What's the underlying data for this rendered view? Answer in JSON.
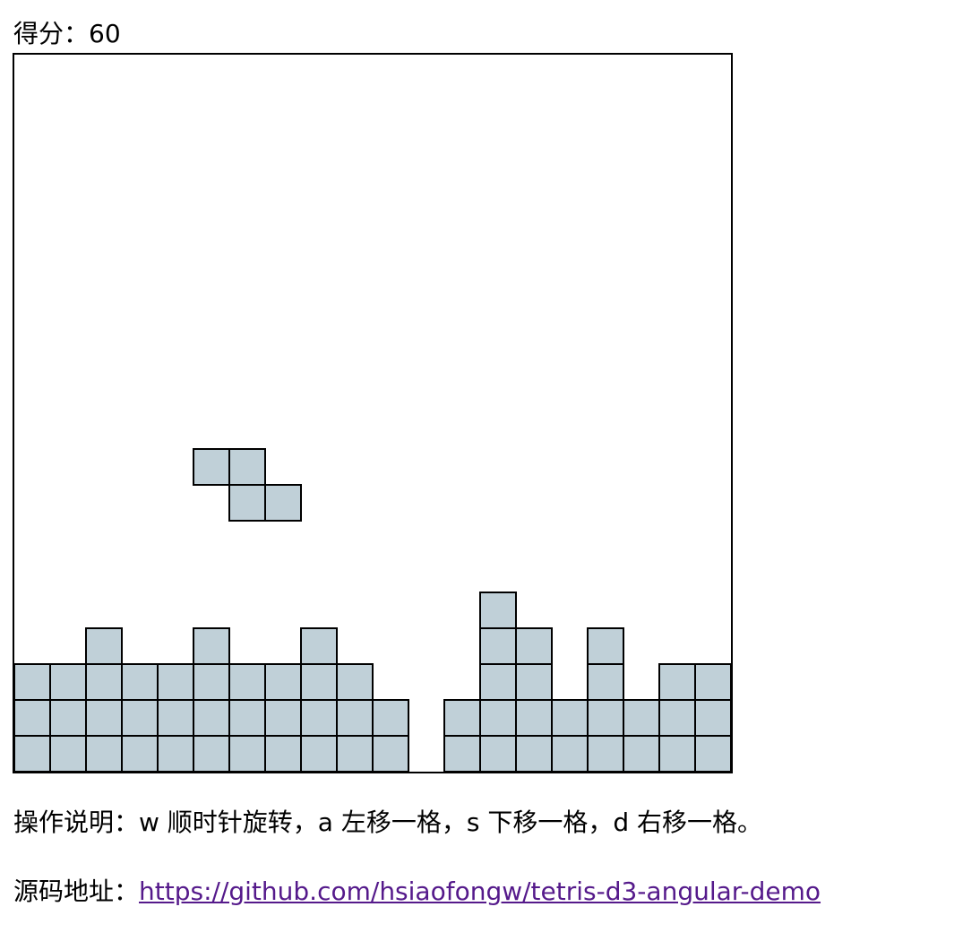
{
  "score": {
    "label": "得分：",
    "value": "60"
  },
  "board": {
    "columns": 20,
    "rows": 20,
    "block_color": "#c0d0d8",
    "block_stroke": "#000000",
    "falling_piece": {
      "type": "Z",
      "cells": [
        [
          5,
          11
        ],
        [
          6,
          11
        ],
        [
          6,
          12
        ],
        [
          7,
          12
        ]
      ]
    },
    "stack_column_heights": [
      3,
      3,
      4,
      3,
      3,
      4,
      3,
      3,
      4,
      3,
      2,
      0,
      2,
      5,
      4,
      2,
      4,
      2,
      3,
      3
    ]
  },
  "instructions": {
    "text": "操作说明：w 顺时针旋转，a 左移一格，s 下移一格，d 右移一格。"
  },
  "source": {
    "label": "源码地址：",
    "link_text": "https://github.com/hsiaofongw/tetris-d3-angular-demo"
  }
}
